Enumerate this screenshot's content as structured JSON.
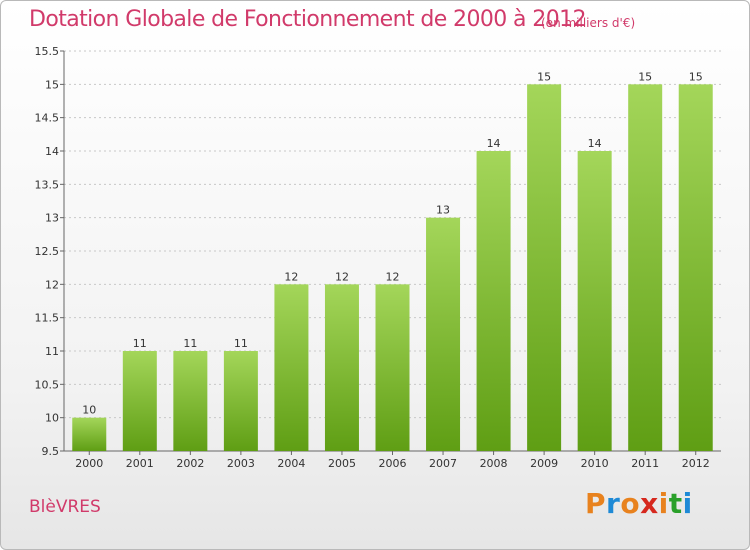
{
  "header": {
    "title": "Dotation Globale de Fonctionnement de 2000 à 2012",
    "subtitle": "(en milliers d'€)"
  },
  "footer": {
    "commune": "BlèVRES",
    "logo_text": "Proxiti"
  },
  "colors": {
    "title": "#d13a6a",
    "bar_top": "#a4d65a",
    "bar_bottom": "#5f9e14",
    "grid": "#c8c8c8",
    "logo": [
      "#e8821e",
      "#1e8ad6",
      "#e8821e",
      "#d6281e",
      "#e8821e",
      "#2aa02a",
      "#1e8ad6"
    ]
  },
  "chart_data": {
    "type": "bar",
    "title": "Dotation Globale de Fonctionnement de 2000 à 2012",
    "subtitle": "(en milliers d'€)",
    "categories": [
      "2000",
      "2001",
      "2002",
      "2003",
      "2004",
      "2005",
      "2006",
      "2007",
      "2008",
      "2009",
      "2010",
      "2011",
      "2012"
    ],
    "values": [
      10,
      11,
      11,
      11,
      12,
      12,
      12,
      13,
      14,
      15,
      14,
      15,
      15
    ],
    "ylim": [
      9.5,
      15.5
    ],
    "yticks": [
      "9.5",
      "10",
      "10.5",
      "11",
      "11.5",
      "12",
      "12.5",
      "13",
      "13.5",
      "14",
      "14.5",
      "15",
      "15.5"
    ],
    "grid": true,
    "xlabel": "",
    "ylabel": ""
  }
}
